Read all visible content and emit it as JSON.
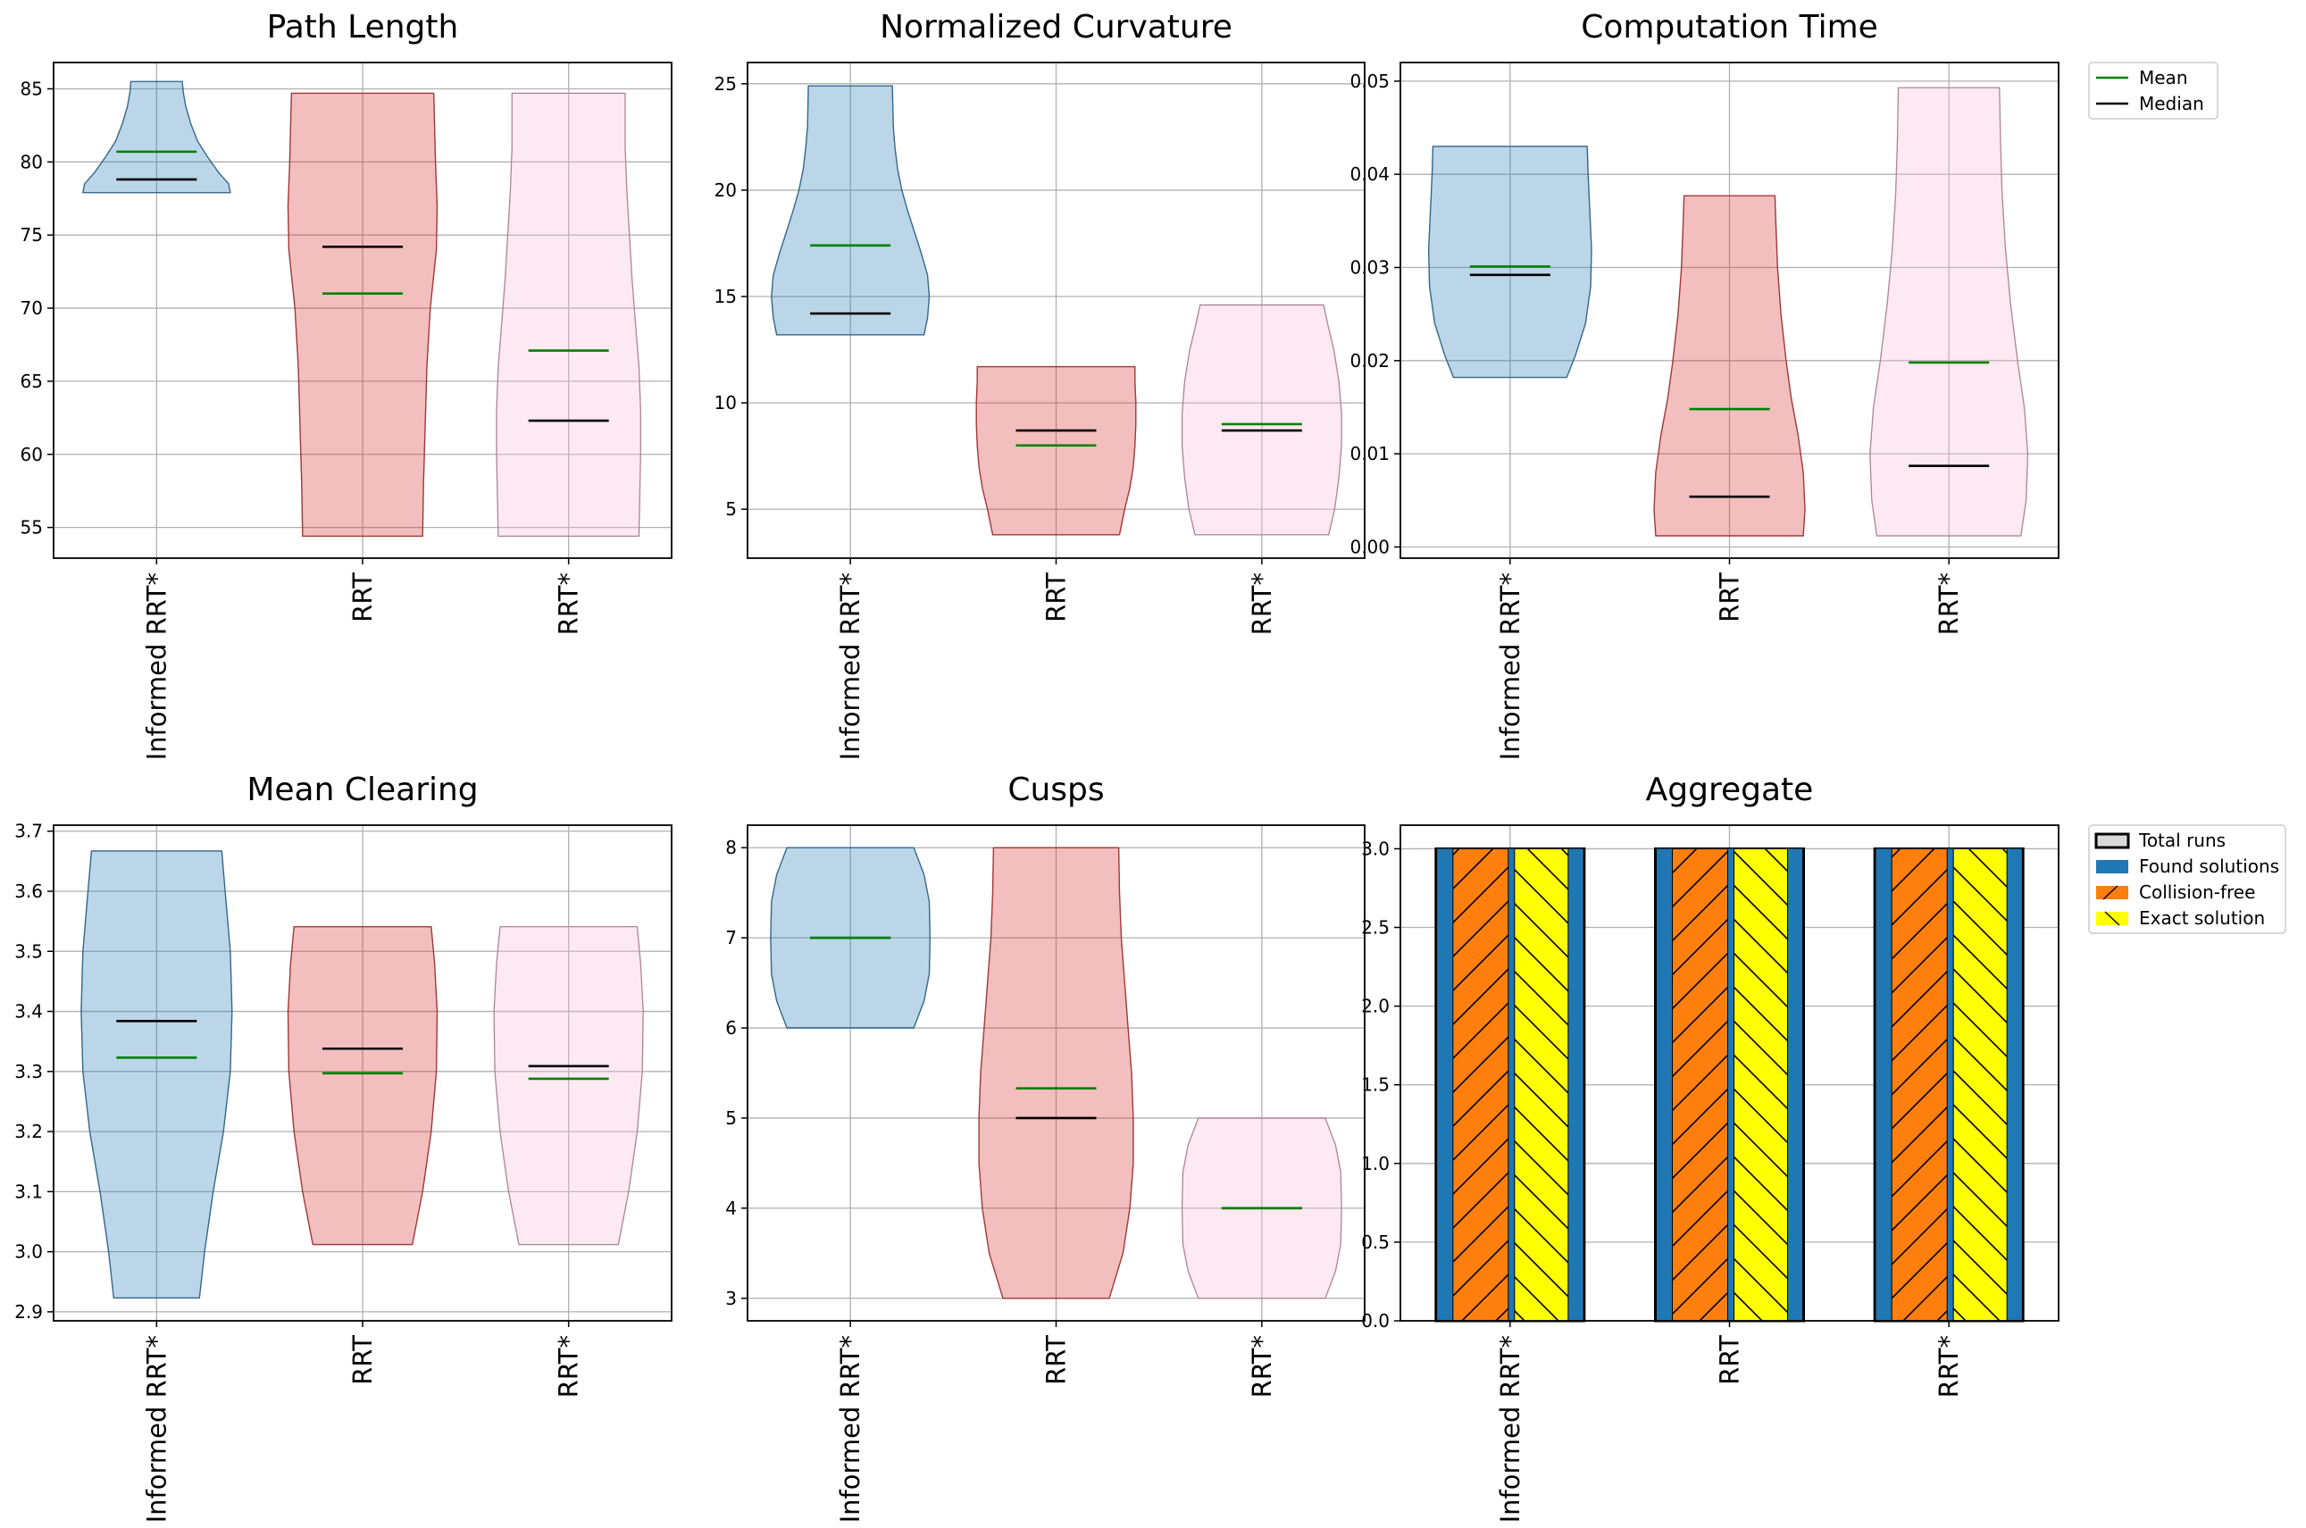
{
  "colors": {
    "Informed RRT*": "#1f77b4",
    "RRT": "#d62728",
    "RRT*": "#f7b6d2",
    "mean": "#008000",
    "median": "#000000",
    "found": "#1f77b4",
    "collision_free": "#ff7f0e",
    "exact": "#ffff00",
    "total": "#d9d9d9",
    "grid": "#b0b0b0"
  },
  "violin_legend": [
    {
      "label": "Mean",
      "color": "#008000"
    },
    {
      "label": "Median",
      "color": "#000000"
    }
  ],
  "bar_legend": [
    {
      "label": "Total runs",
      "color": "#d9d9d9",
      "hatch": "none"
    },
    {
      "label": "Found solutions",
      "color": "#1f77b4",
      "hatch": "none"
    },
    {
      "label": "Collision-free",
      "color": "#ff7f0e",
      "hatch": "slash"
    },
    {
      "label": "Exact solution",
      "color": "#ffff00",
      "hatch": "backslash"
    }
  ],
  "chart_data": [
    {
      "type": "violin",
      "title": "Path Length",
      "categories": [
        "Informed RRT*",
        "RRT",
        "RRT*"
      ],
      "ylim": [
        52.9,
        86.8
      ],
      "yticks": [
        55,
        60,
        65,
        70,
        75,
        80,
        85
      ],
      "tick_labels": [
        "55",
        "60",
        "65",
        "70",
        "75",
        "80",
        "85"
      ],
      "grid": true,
      "series": [
        {
          "name": "Informed RRT*",
          "min": 77.9,
          "max": 85.5,
          "mean": 80.7,
          "median": 78.8,
          "profile": [
            [
              77.9,
              0.86
            ],
            [
              78.5,
              0.84
            ],
            [
              79.3,
              0.72
            ],
            [
              80.3,
              0.6
            ],
            [
              81.4,
              0.48
            ],
            [
              82.6,
              0.4
            ],
            [
              83.8,
              0.34
            ],
            [
              84.8,
              0.31
            ],
            [
              85.5,
              0.3
            ]
          ]
        },
        {
          "name": "RRT",
          "min": 54.4,
          "max": 84.7,
          "mean": 71.0,
          "median": 74.2,
          "profile": [
            [
              54.4,
              0.7
            ],
            [
              58,
              0.71
            ],
            [
              62,
              0.73
            ],
            [
              66,
              0.75
            ],
            [
              70,
              0.79
            ],
            [
              74,
              0.86
            ],
            [
              77,
              0.87
            ],
            [
              80,
              0.85
            ],
            [
              82.5,
              0.84
            ],
            [
              84.7,
              0.83
            ]
          ]
        },
        {
          "name": "RRT*",
          "min": 54.4,
          "max": 84.7,
          "mean": 67.1,
          "median": 62.3,
          "profile": [
            [
              54.4,
              0.82
            ],
            [
              57,
              0.83
            ],
            [
              60,
              0.84
            ],
            [
              63,
              0.84
            ],
            [
              66,
              0.82
            ],
            [
              69,
              0.78
            ],
            [
              72,
              0.74
            ],
            [
              75,
              0.71
            ],
            [
              78,
              0.68
            ],
            [
              81,
              0.66
            ],
            [
              84.7,
              0.66
            ]
          ]
        }
      ]
    },
    {
      "type": "violin",
      "title": "Normalized Curvature",
      "categories": [
        "Informed RRT*",
        "RRT",
        "RRT*"
      ],
      "ylim": [
        2.7,
        26.0
      ],
      "yticks": [
        5,
        10,
        15,
        20,
        25
      ],
      "tick_labels": [
        "5",
        "10",
        "15",
        "20",
        "25"
      ],
      "grid": true,
      "series": [
        {
          "name": "Informed RRT*",
          "min": 13.2,
          "max": 24.9,
          "mean": 17.4,
          "median": 14.2,
          "profile": [
            [
              13.2,
              0.86
            ],
            [
              14,
              0.9
            ],
            [
              15,
              0.92
            ],
            [
              16,
              0.9
            ],
            [
              17,
              0.83
            ],
            [
              18,
              0.75
            ],
            [
              19,
              0.67
            ],
            [
              20,
              0.6
            ],
            [
              21,
              0.55
            ],
            [
              22,
              0.52
            ],
            [
              23,
              0.5
            ],
            [
              24.9,
              0.49
            ]
          ]
        },
        {
          "name": "RRT",
          "min": 3.8,
          "max": 11.7,
          "mean": 8.0,
          "median": 8.7,
          "profile": [
            [
              3.8,
              0.74
            ],
            [
              5,
              0.8
            ],
            [
              6,
              0.86
            ],
            [
              7,
              0.9
            ],
            [
              8,
              0.92
            ],
            [
              9,
              0.93
            ],
            [
              10,
              0.93
            ],
            [
              11,
              0.92
            ],
            [
              11.7,
              0.92
            ]
          ]
        },
        {
          "name": "RRT*",
          "min": 3.8,
          "max": 14.6,
          "mean": 9.0,
          "median": 8.7,
          "profile": [
            [
              3.8,
              0.78
            ],
            [
              5,
              0.85
            ],
            [
              6.5,
              0.9
            ],
            [
              8,
              0.93
            ],
            [
              9.5,
              0.93
            ],
            [
              11,
              0.9
            ],
            [
              12.5,
              0.84
            ],
            [
              13.5,
              0.78
            ],
            [
              14.6,
              0.72
            ]
          ]
        }
      ]
    },
    {
      "type": "violin",
      "title": "Computation Time",
      "categories": [
        "Informed RRT*",
        "RRT",
        "RRT*"
      ],
      "ylim": [
        -0.0012,
        0.052
      ],
      "yticks": [
        0.0,
        0.01,
        0.02,
        0.03,
        0.04,
        0.05
      ],
      "tick_labels": [
        "0.00",
        "0.01",
        "0.02",
        "0.03",
        "0.04",
        "0.05"
      ],
      "grid": true,
      "series": [
        {
          "name": "Informed RRT*",
          "min": 0.0182,
          "max": 0.043,
          "mean": 0.0301,
          "median": 0.0292,
          "profile": [
            [
              0.0182,
              0.66
            ],
            [
              0.0205,
              0.76
            ],
            [
              0.024,
              0.88
            ],
            [
              0.028,
              0.94
            ],
            [
              0.032,
              0.95
            ],
            [
              0.036,
              0.93
            ],
            [
              0.04,
              0.91
            ],
            [
              0.043,
              0.9
            ]
          ]
        },
        {
          "name": "RRT",
          "min": 0.0012,
          "max": 0.0377,
          "mean": 0.0148,
          "median": 0.0054,
          "profile": [
            [
              0.0012,
              0.86
            ],
            [
              0.004,
              0.88
            ],
            [
              0.008,
              0.86
            ],
            [
              0.012,
              0.8
            ],
            [
              0.016,
              0.72
            ],
            [
              0.02,
              0.66
            ],
            [
              0.025,
              0.6
            ],
            [
              0.03,
              0.56
            ],
            [
              0.035,
              0.54
            ],
            [
              0.0377,
              0.53
            ]
          ]
        },
        {
          "name": "RRT*",
          "min": 0.0012,
          "max": 0.0493,
          "mean": 0.0198,
          "median": 0.0087,
          "profile": [
            [
              0.0012,
              0.84
            ],
            [
              0.005,
              0.9
            ],
            [
              0.01,
              0.92
            ],
            [
              0.015,
              0.88
            ],
            [
              0.02,
              0.8
            ],
            [
              0.026,
              0.72
            ],
            [
              0.032,
              0.66
            ],
            [
              0.038,
              0.62
            ],
            [
              0.044,
              0.6
            ],
            [
              0.0493,
              0.59
            ]
          ]
        }
      ]
    },
    {
      "type": "violin",
      "title": "Mean Clearing",
      "categories": [
        "Informed RRT*",
        "RRT",
        "RRT*"
      ],
      "ylim": [
        2.885,
        3.71
      ],
      "yticks": [
        2.9,
        3.0,
        3.1,
        3.2,
        3.3,
        3.4,
        3.5,
        3.6,
        3.7
      ],
      "tick_labels": [
        "2.9",
        "3.0",
        "3.1",
        "3.2",
        "3.3",
        "3.4",
        "3.5",
        "3.6",
        "3.7"
      ],
      "grid": true,
      "series": [
        {
          "name": "Informed RRT*",
          "min": 2.923,
          "max": 3.667,
          "mean": 3.323,
          "median": 3.384,
          "profile": [
            [
              2.923,
              0.5
            ],
            [
              3.0,
              0.56
            ],
            [
              3.1,
              0.66
            ],
            [
              3.2,
              0.78
            ],
            [
              3.3,
              0.86
            ],
            [
              3.4,
              0.88
            ],
            [
              3.5,
              0.86
            ],
            [
              3.6,
              0.8
            ],
            [
              3.667,
              0.76
            ]
          ]
        },
        {
          "name": "RRT",
          "min": 3.012,
          "max": 3.541,
          "mean": 3.297,
          "median": 3.338,
          "profile": [
            [
              3.012,
              0.58
            ],
            [
              3.1,
              0.7
            ],
            [
              3.2,
              0.8
            ],
            [
              3.3,
              0.86
            ],
            [
              3.4,
              0.87
            ],
            [
              3.48,
              0.84
            ],
            [
              3.541,
              0.8
            ]
          ]
        },
        {
          "name": "RRT*",
          "min": 3.012,
          "max": 3.541,
          "mean": 3.288,
          "median": 3.309,
          "profile": [
            [
              3.012,
              0.58
            ],
            [
              3.1,
              0.7
            ],
            [
              3.2,
              0.8
            ],
            [
              3.3,
              0.86
            ],
            [
              3.4,
              0.87
            ],
            [
              3.48,
              0.84
            ],
            [
              3.541,
              0.8
            ]
          ]
        }
      ]
    },
    {
      "type": "violin",
      "title": "Cusps",
      "categories": [
        "Informed RRT*",
        "RRT",
        "RRT*"
      ],
      "ylim": [
        2.75,
        8.25
      ],
      "yticks": [
        3,
        4,
        5,
        6,
        7,
        8
      ],
      "tick_labels": [
        "3",
        "4",
        "5",
        "6",
        "7",
        "8"
      ],
      "grid": true,
      "series": [
        {
          "name": "Informed RRT*",
          "min": 6.0,
          "max": 8.0,
          "mean": 7.0,
          "median": 7.0,
          "profile": [
            [
              6.0,
              0.74
            ],
            [
              6.3,
              0.86
            ],
            [
              6.6,
              0.92
            ],
            [
              7.0,
              0.93
            ],
            [
              7.4,
              0.92
            ],
            [
              7.7,
              0.86
            ],
            [
              8.0,
              0.74
            ]
          ]
        },
        {
          "name": "RRT",
          "min": 3.0,
          "max": 8.0,
          "mean": 5.33,
          "median": 5.0,
          "profile": [
            [
              3.0,
              0.62
            ],
            [
              3.5,
              0.78
            ],
            [
              4.0,
              0.86
            ],
            [
              4.5,
              0.9
            ],
            [
              5.0,
              0.9
            ],
            [
              5.5,
              0.88
            ],
            [
              6.0,
              0.84
            ],
            [
              6.5,
              0.8
            ],
            [
              7.0,
              0.76
            ],
            [
              7.5,
              0.74
            ],
            [
              8.0,
              0.73
            ]
          ]
        },
        {
          "name": "RRT*",
          "min": 3.0,
          "max": 5.0,
          "mean": 4.0,
          "median": 4.0,
          "profile": [
            [
              3.0,
              0.74
            ],
            [
              3.3,
              0.86
            ],
            [
              3.6,
              0.92
            ],
            [
              4.0,
              0.93
            ],
            [
              4.4,
              0.92
            ],
            [
              4.7,
              0.86
            ],
            [
              5.0,
              0.74
            ]
          ]
        }
      ]
    },
    {
      "type": "bar",
      "title": "Aggregate",
      "categories": [
        "Informed RRT*",
        "RRT",
        "RRT*"
      ],
      "ylim": [
        0,
        3.15
      ],
      "yticks": [
        0.0,
        0.5,
        1.0,
        1.5,
        2.0,
        2.5,
        3.0
      ],
      "tick_labels": [
        "0.0",
        "0.5",
        "1.0",
        "1.5",
        "2.0",
        "2.5",
        "3.0"
      ],
      "grid": true,
      "series": [
        {
          "name": "Total runs",
          "values": [
            3,
            3,
            3
          ]
        },
        {
          "name": "Found solutions",
          "values": [
            3,
            3,
            3
          ]
        },
        {
          "name": "Collision-free",
          "values": [
            3,
            3,
            3
          ]
        },
        {
          "name": "Exact solution",
          "values": [
            3,
            3,
            3
          ]
        }
      ]
    }
  ]
}
